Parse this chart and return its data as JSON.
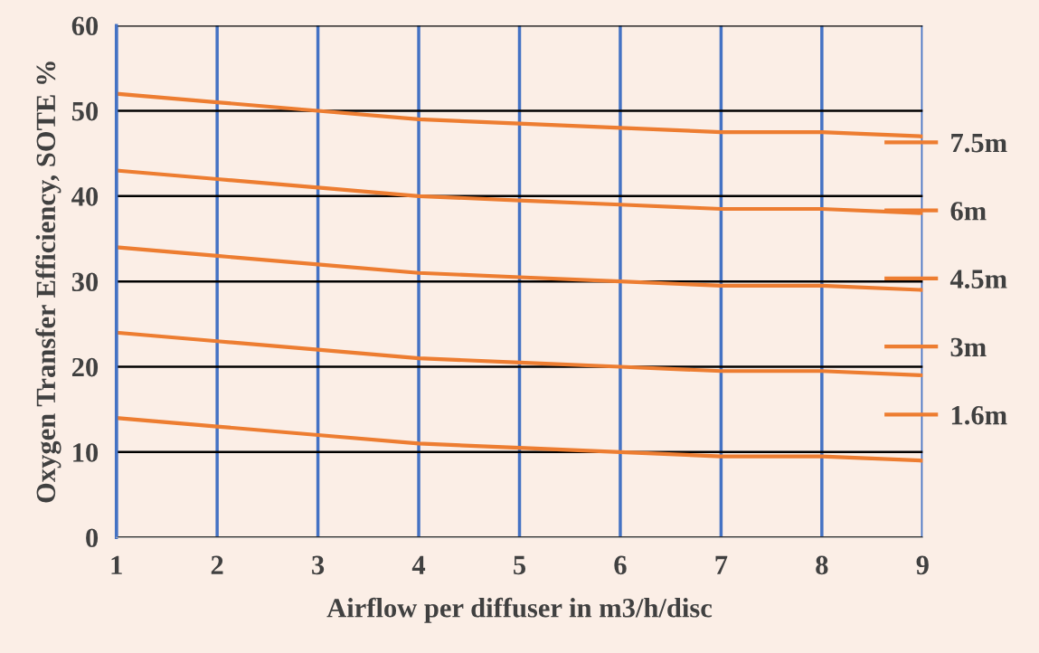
{
  "chart_data": {
    "type": "line",
    "xlabel": "Airflow per diffuser in m3/h/disc",
    "ylabel": "Oxygen Transfer Efficiency, SOTE %",
    "x": [
      1,
      2,
      3,
      4,
      5,
      6,
      7,
      8,
      9
    ],
    "xlim": [
      1,
      9
    ],
    "xticks": [
      1,
      2,
      3,
      4,
      5,
      6,
      7,
      8,
      9
    ],
    "ylim": [
      0,
      60
    ],
    "yticks": [
      0,
      10,
      20,
      30,
      40,
      50,
      60
    ],
    "grid": true,
    "legend": "right",
    "marker": "none",
    "line_style": "solid",
    "series": [
      {
        "name": "7.5m",
        "color": "#ed7d31",
        "values": [
          52,
          51,
          50,
          49,
          48.5,
          48,
          47.5,
          47.5,
          47
        ]
      },
      {
        "name": "6m",
        "color": "#ed7d31",
        "values": [
          43,
          42,
          41,
          40,
          39.5,
          39,
          38.5,
          38.5,
          38
        ]
      },
      {
        "name": "4.5m",
        "color": "#ed7d31",
        "values": [
          34,
          33,
          32,
          31,
          30.5,
          30,
          29.5,
          29.5,
          29
        ]
      },
      {
        "name": "3m",
        "color": "#ed7d31",
        "values": [
          24,
          23,
          22,
          21,
          20.5,
          20,
          19.5,
          19.5,
          19
        ]
      },
      {
        "name": "1.6m",
        "color": "#ed7d31",
        "values": [
          14,
          13,
          12,
          11,
          10.5,
          10,
          9.5,
          9.5,
          9
        ]
      }
    ]
  }
}
